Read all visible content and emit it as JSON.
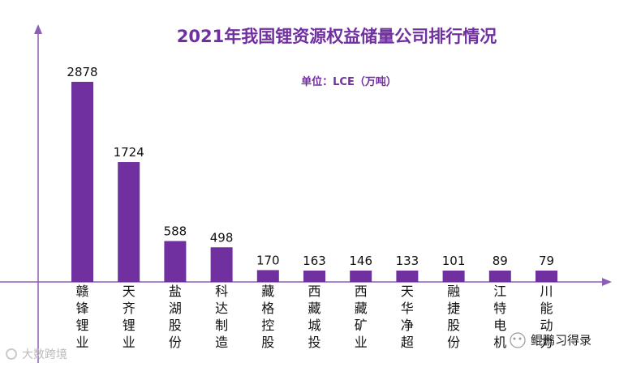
{
  "chart_data": {
    "type": "bar",
    "title": "2021年我国锂资源权益储量公司排行情况",
    "unit_label": "单位：LCE（万吨）",
    "categories": [
      "赣锋锂业",
      "天齐锂业",
      "盐湖股份",
      "科达制造",
      "藏格控股",
      "西藏城投",
      "西藏矿业",
      "天华净超",
      "融捷股份",
      "江特电机",
      "川能动力"
    ],
    "values": [
      2878,
      1724,
      588,
      498,
      170,
      163,
      146,
      133,
      101,
      89,
      79
    ],
    "bar_color": "#7030a0",
    "axis_color": "#8e5db5",
    "title_color": "#7030a0"
  },
  "watermarks": {
    "left": "大数跨境",
    "right": "鲲鹏习得录"
  }
}
